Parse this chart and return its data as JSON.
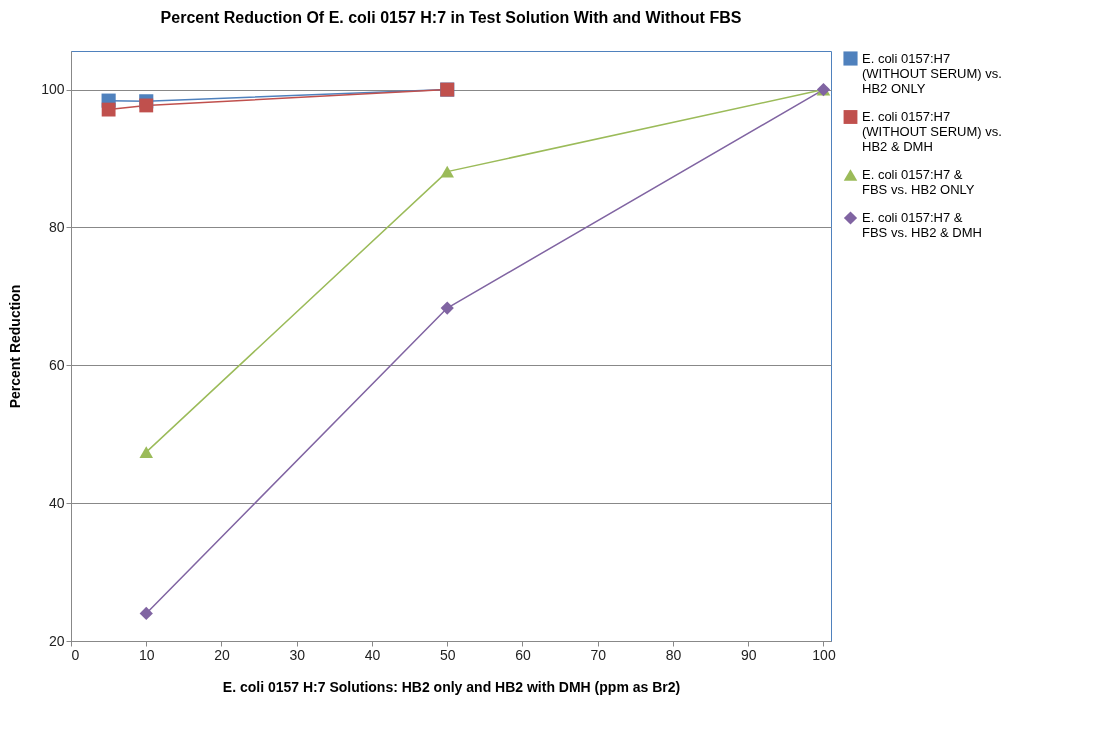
{
  "chart_data": {
    "type": "line",
    "title": "Percent Reduction Of E. coli 0157 H:7 in Test Solution With and Without FBS",
    "xlabel": "E. coli 0157  H:7 Solutions:  HB2  only and HB2 with DMH  (ppm as Br2)",
    "ylabel": "Percent Reduction",
    "xlim": [
      0,
      101
    ],
    "xticks": [
      0,
      10,
      20,
      30,
      40,
      50,
      60,
      70,
      80,
      90,
      100
    ],
    "ylim": [
      20,
      105.6
    ],
    "yticks": [
      20,
      40,
      60,
      80,
      100
    ],
    "grid": "y",
    "legend": "right",
    "series": [
      {
        "name": "E. coli 0157:H7 (WITHOUT SERUM) vs. HB2 ONLY",
        "color": "#4f81bd",
        "marker": "square",
        "x": [
          5,
          10,
          50
        ],
        "values": [
          98.4,
          98.3,
          100
        ]
      },
      {
        "name": "E. coli 0157:H7 (WITHOUT SERUM) vs. HB2 & DMH",
        "color": "#c0504d",
        "marker": "square",
        "x": [
          5,
          10,
          50
        ],
        "values": [
          97.1,
          97.7,
          100
        ]
      },
      {
        "name": "E. coli 0157:H7 & FBS vs. HB2 ONLY",
        "color": "#9bbb59",
        "marker": "triangle",
        "x": [
          10,
          50,
          100
        ],
        "values": [
          47.4,
          88.1,
          100
        ]
      },
      {
        "name": "E. coli 0157:H7 & FBS vs. HB2 & DMH",
        "color": "#8064a2",
        "marker": "diamond",
        "x": [
          10,
          50,
          100
        ],
        "values": [
          24.0,
          68.3,
          100
        ]
      }
    ]
  }
}
